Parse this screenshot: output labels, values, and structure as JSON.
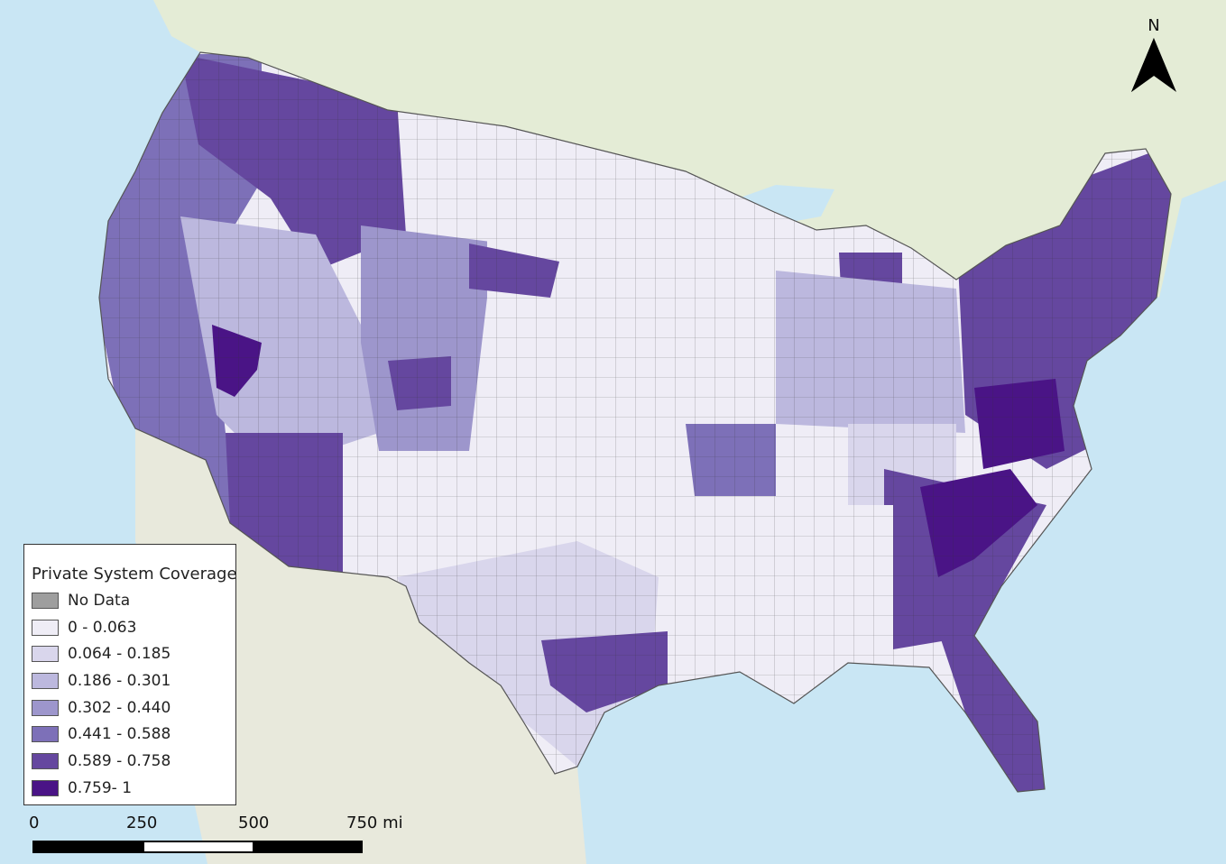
{
  "legend": {
    "title": "Private System Coverage",
    "classes": [
      {
        "label": "No Data",
        "color": "#9e9e9e"
      },
      {
        "label": "0 - 0.063",
        "color": "#efedf6"
      },
      {
        "label": "0.064 - 0.185",
        "color": "#d9d6ec"
      },
      {
        "label": "0.186 - 0.301",
        "color": "#bcb8de"
      },
      {
        "label": "0.302 - 0.440",
        "color": "#9d96cc"
      },
      {
        "label": "0.441 - 0.588",
        "color": "#7d70b8"
      },
      {
        "label": "0.589 - 0.758",
        "color": "#65479f"
      },
      {
        "label": "0.759- 1",
        "color": "#4a1486"
      }
    ]
  },
  "north_arrow": {
    "label": "N"
  },
  "scale_bar": {
    "ticks": [
      "0",
      "250",
      "500",
      "750 mi"
    ]
  },
  "basemap": {
    "water": "#c9e6f4",
    "land": "#eef0e8",
    "canada_land": "#e4ecd6",
    "mexico_land": "#e8e9dc"
  }
}
